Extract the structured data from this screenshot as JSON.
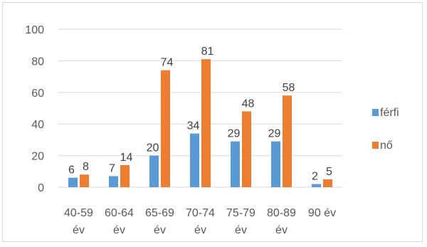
{
  "chart_data": {
    "type": "bar",
    "categories": [
      [
        "40-59",
        "év"
      ],
      [
        "60-64",
        "év"
      ],
      [
        "65-69",
        "év"
      ],
      [
        "70-74",
        "év"
      ],
      [
        "75-79",
        "év"
      ],
      [
        "80-89",
        "év"
      ],
      [
        "90 év"
      ]
    ],
    "series": [
      {
        "name": "férfi",
        "color": "#5b9bd5",
        "values": [
          6,
          7,
          20,
          34,
          29,
          29,
          2
        ]
      },
      {
        "name": "nő",
        "color": "#ed7d31",
        "values": [
          8,
          14,
          74,
          81,
          48,
          58,
          5
        ]
      }
    ],
    "yticks": [
      0,
      20,
      40,
      60,
      80,
      100
    ],
    "ylim": [
      0,
      100
    ],
    "gridlines": true,
    "legend_position": "right",
    "data_labels": true
  }
}
